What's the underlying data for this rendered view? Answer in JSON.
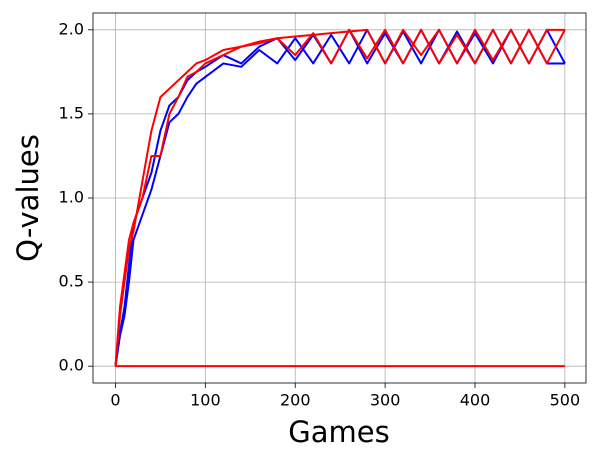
{
  "chart_data": {
    "type": "line",
    "xlabel": "Games",
    "ylabel": "Q-values",
    "x": [
      0,
      5,
      10,
      15,
      20,
      30,
      40,
      50,
      60,
      70,
      80,
      90,
      100,
      120,
      140,
      160,
      180,
      200,
      220,
      240,
      260,
      280,
      300,
      320,
      340,
      360,
      380,
      400,
      420,
      440,
      460,
      480,
      500
    ],
    "series": [
      {
        "color": "#0000ff",
        "values": [
          0,
          0.2,
          0.35,
          0.6,
          0.85,
          1.0,
          1.15,
          1.4,
          1.55,
          1.6,
          1.7,
          1.75,
          1.78,
          1.85,
          1.8,
          1.9,
          1.95,
          1.82,
          1.97,
          1.8,
          2.0,
          1.8,
          1.98,
          1.8,
          2.0,
          1.8,
          1.99,
          1.8,
          2.0,
          1.8,
          2.0,
          1.8,
          1.8
        ]
      },
      {
        "color": "#0000ff",
        "values": [
          0,
          0.18,
          0.3,
          0.5,
          0.75,
          0.9,
          1.05,
          1.25,
          1.45,
          1.5,
          1.6,
          1.68,
          1.72,
          1.8,
          1.78,
          1.88,
          1.8,
          1.95,
          1.8,
          1.97,
          1.8,
          2.0,
          1.8,
          1.99,
          1.8,
          2.0,
          1.8,
          1.98,
          1.8,
          2.0,
          1.8,
          2.0,
          1.8
        ]
      },
      {
        "color": "#ff0000",
        "values": [
          0,
          0.35,
          0.55,
          0.75,
          0.85,
          1.0,
          1.25,
          1.25,
          1.5,
          1.6,
          1.72,
          1.75,
          1.8,
          1.85,
          1.9,
          1.93,
          1.95,
          1.96,
          1.97,
          1.98,
          1.99,
          2.0,
          1.8,
          2.0,
          1.85,
          2.0,
          1.8,
          2.0,
          1.82,
          2.0,
          1.8,
          2.0,
          2.0
        ]
      },
      {
        "color": "#ff0000",
        "values": [
          0,
          0.3,
          0.5,
          0.7,
          0.8,
          1.1,
          1.4,
          1.6,
          1.65,
          1.7,
          1.75,
          1.8,
          1.82,
          1.88,
          1.9,
          1.92,
          1.95,
          1.85,
          1.98,
          1.8,
          2.0,
          1.83,
          2.0,
          1.8,
          2.0,
          1.8,
          1.97,
          1.8,
          2.0,
          1.8,
          2.0,
          1.8,
          2.0
        ]
      },
      {
        "color": "#ff0000",
        "values": [
          0,
          0,
          0,
          0,
          0,
          0,
          0,
          0,
          0,
          0,
          0,
          0,
          0,
          0,
          0,
          0,
          0,
          0,
          0,
          0,
          0,
          0,
          0,
          0,
          0,
          0,
          0,
          0,
          0,
          0,
          0,
          0,
          0
        ]
      }
    ],
    "xlim": [
      -25,
      523.5
    ],
    "ylim": [
      -0.1,
      2.1
    ],
    "xticks": [
      0,
      100,
      200,
      300,
      400,
      500
    ],
    "yticks": [
      {
        "value": 0,
        "label": "0.0"
      },
      {
        "value": 0.5,
        "label": "0.5"
      },
      {
        "value": 1,
        "label": "1.0"
      },
      {
        "value": 1.5,
        "label": "1.5"
      },
      {
        "value": 2,
        "label": "2.0"
      }
    ],
    "grid": true
  }
}
